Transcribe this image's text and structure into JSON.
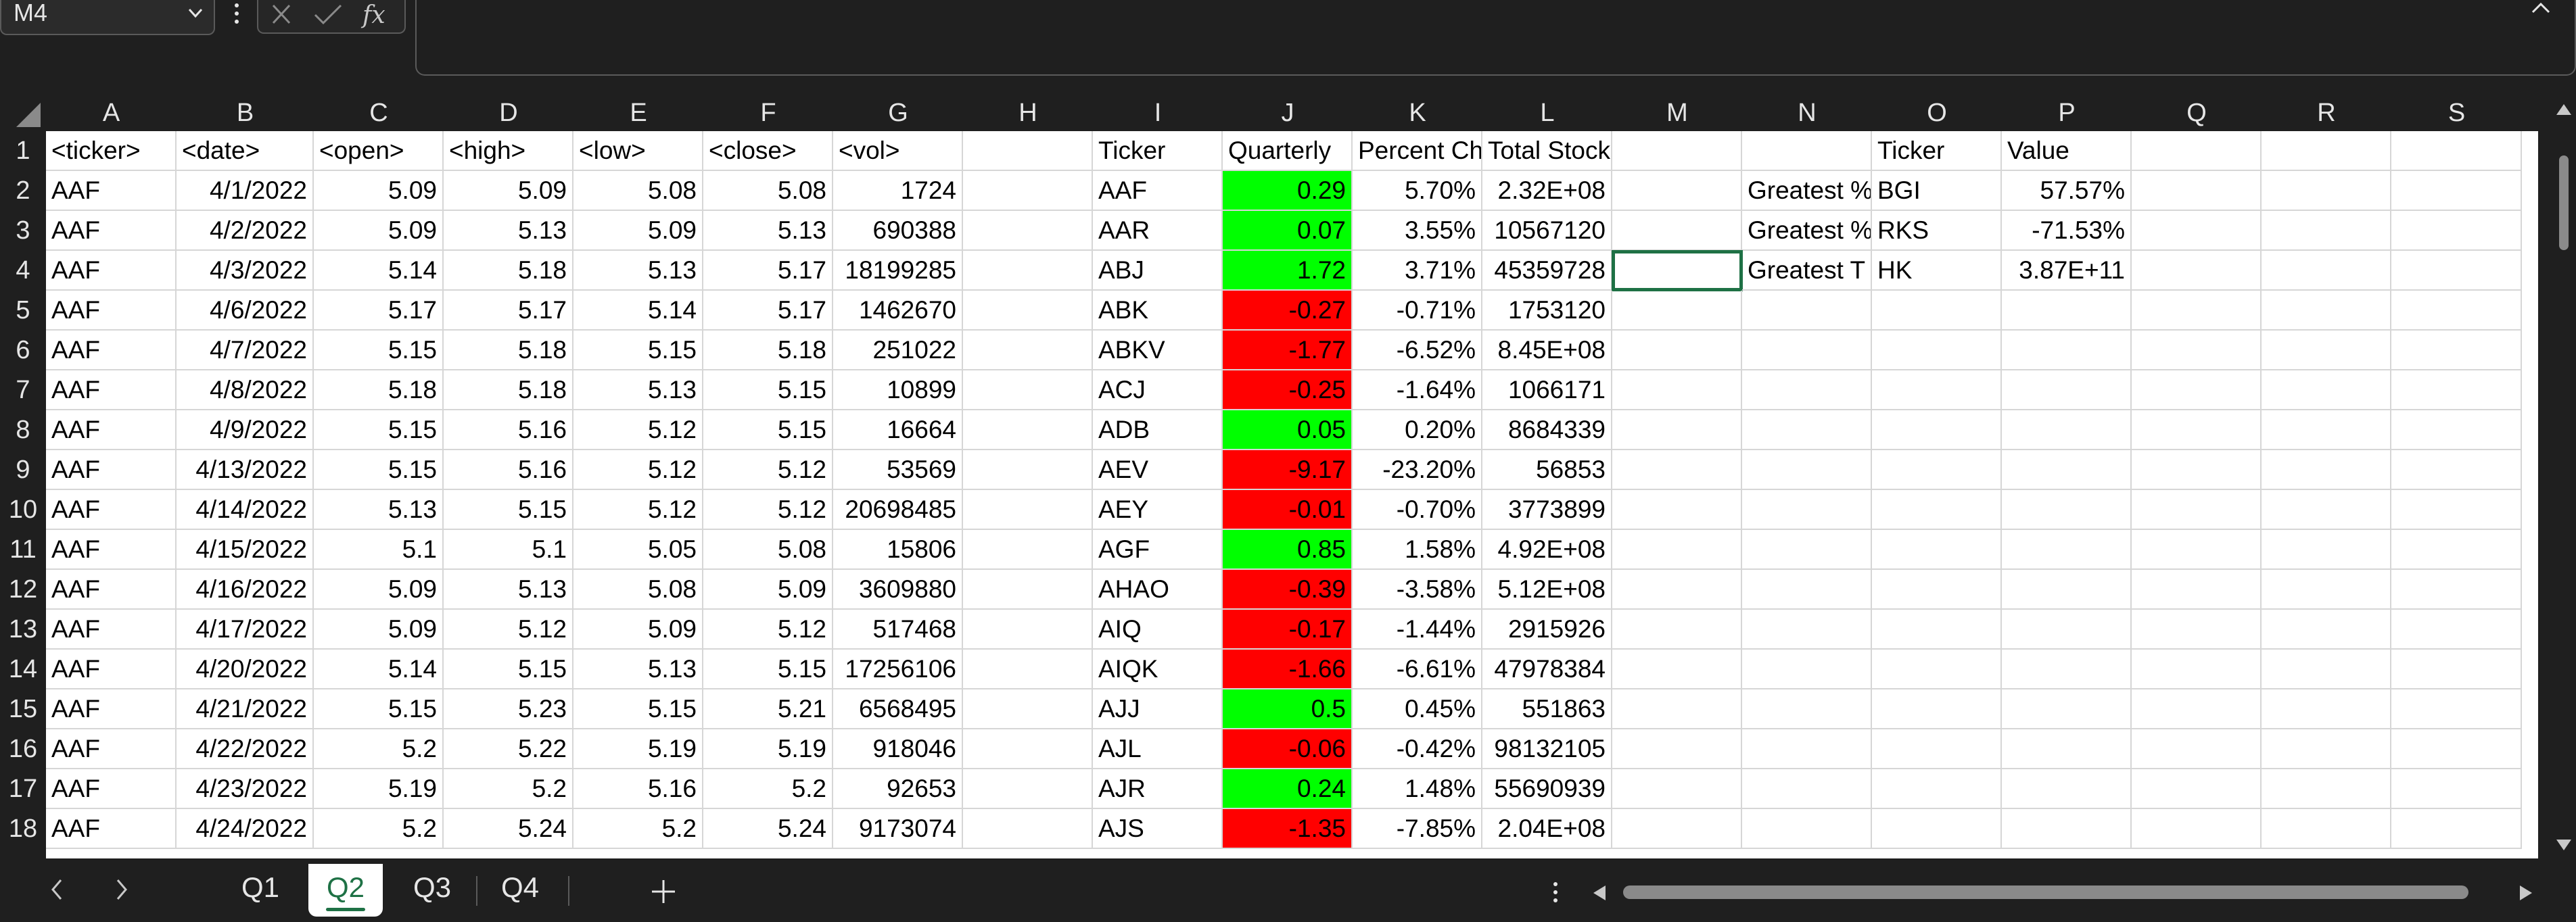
{
  "formula_bar": {
    "name_box": "M4",
    "formula": ""
  },
  "columns": [
    "A",
    "B",
    "C",
    "D",
    "E",
    "F",
    "G",
    "H",
    "I",
    "J",
    "K",
    "L",
    "M",
    "N",
    "O",
    "P",
    "Q",
    "R",
    "S"
  ],
  "rows": [
    {
      "n": "1",
      "c": [
        "<ticker>",
        "<date>",
        "<open>",
        "<high>",
        "<low>",
        "<close>",
        "<vol>",
        "",
        "Ticker",
        "Quarterly",
        "Percent Ch",
        "Total Stock Volume",
        "",
        "",
        "Ticker",
        "Value",
        "",
        "",
        ""
      ],
      "j": ""
    },
    {
      "n": "2",
      "c": [
        "AAF",
        "4/1/2022",
        "5.09",
        "5.09",
        "5.08",
        "5.08",
        "1724",
        "",
        "AAF",
        "0.29",
        "5.70%",
        "2.32E+08",
        "",
        "Greatest %",
        "BGI",
        "57.57%",
        "",
        "",
        ""
      ],
      "j": "green"
    },
    {
      "n": "3",
      "c": [
        "AAF",
        "4/2/2022",
        "5.09",
        "5.13",
        "5.09",
        "5.13",
        "690388",
        "",
        "AAR",
        "0.07",
        "3.55%",
        "10567120",
        "",
        "Greatest %",
        "RKS",
        "-71.53%",
        "",
        "",
        ""
      ],
      "j": "green"
    },
    {
      "n": "4",
      "c": [
        "AAF",
        "4/3/2022",
        "5.14",
        "5.18",
        "5.13",
        "5.17",
        "18199285",
        "",
        "ABJ",
        "1.72",
        "3.71%",
        "45359728",
        "",
        "Greatest T",
        "HK",
        "3.87E+11",
        "",
        "",
        ""
      ],
      "j": "green"
    },
    {
      "n": "5",
      "c": [
        "AAF",
        "4/6/2022",
        "5.17",
        "5.17",
        "5.14",
        "5.17",
        "1462670",
        "",
        "ABK",
        "-0.27",
        "-0.71%",
        "1753120",
        "",
        "",
        "",
        "",
        "",
        "",
        ""
      ],
      "j": "red"
    },
    {
      "n": "6",
      "c": [
        "AAF",
        "4/7/2022",
        "5.15",
        "5.18",
        "5.15",
        "5.18",
        "251022",
        "",
        "ABKV",
        "-1.77",
        "-6.52%",
        "8.45E+08",
        "",
        "",
        "",
        "",
        "",
        "",
        ""
      ],
      "j": "red"
    },
    {
      "n": "7",
      "c": [
        "AAF",
        "4/8/2022",
        "5.18",
        "5.18",
        "5.13",
        "5.15",
        "10899",
        "",
        "ACJ",
        "-0.25",
        "-1.64%",
        "1066171",
        "",
        "",
        "",
        "",
        "",
        "",
        ""
      ],
      "j": "red"
    },
    {
      "n": "8",
      "c": [
        "AAF",
        "4/9/2022",
        "5.15",
        "5.16",
        "5.12",
        "5.15",
        "16664",
        "",
        "ADB",
        "0.05",
        "0.20%",
        "8684339",
        "",
        "",
        "",
        "",
        "",
        "",
        ""
      ],
      "j": "green"
    },
    {
      "n": "9",
      "c": [
        "AAF",
        "4/13/2022",
        "5.15",
        "5.16",
        "5.12",
        "5.12",
        "53569",
        "",
        "AEV",
        "-9.17",
        "-23.20%",
        "56853",
        "",
        "",
        "",
        "",
        "",
        "",
        ""
      ],
      "j": "red"
    },
    {
      "n": "10",
      "c": [
        "AAF",
        "4/14/2022",
        "5.13",
        "5.15",
        "5.12",
        "5.12",
        "20698485",
        "",
        "AEY",
        "-0.01",
        "-0.70%",
        "3773899",
        "",
        "",
        "",
        "",
        "",
        "",
        ""
      ],
      "j": "red"
    },
    {
      "n": "11",
      "c": [
        "AAF",
        "4/15/2022",
        "5.1",
        "5.1",
        "5.05",
        "5.08",
        "15806",
        "",
        "AGF",
        "0.85",
        "1.58%",
        "4.92E+08",
        "",
        "",
        "",
        "",
        "",
        "",
        ""
      ],
      "j": "green"
    },
    {
      "n": "12",
      "c": [
        "AAF",
        "4/16/2022",
        "5.09",
        "5.13",
        "5.08",
        "5.09",
        "3609880",
        "",
        "AHAO",
        "-0.39",
        "-3.58%",
        "5.12E+08",
        "",
        "",
        "",
        "",
        "",
        "",
        ""
      ],
      "j": "red"
    },
    {
      "n": "13",
      "c": [
        "AAF",
        "4/17/2022",
        "5.09",
        "5.12",
        "5.09",
        "5.12",
        "517468",
        "",
        "AIQ",
        "-0.17",
        "-1.44%",
        "2915926",
        "",
        "",
        "",
        "",
        "",
        "",
        ""
      ],
      "j": "red"
    },
    {
      "n": "14",
      "c": [
        "AAF",
        "4/20/2022",
        "5.14",
        "5.15",
        "5.13",
        "5.15",
        "17256106",
        "",
        "AIQK",
        "-1.66",
        "-6.61%",
        "47978384",
        "",
        "",
        "",
        "",
        "",
        "",
        ""
      ],
      "j": "red"
    },
    {
      "n": "15",
      "c": [
        "AAF",
        "4/21/2022",
        "5.15",
        "5.23",
        "5.15",
        "5.21",
        "6568495",
        "",
        "AJJ",
        "0.5",
        "0.45%",
        "551863",
        "",
        "",
        "",
        "",
        "",
        "",
        ""
      ],
      "j": "green"
    },
    {
      "n": "16",
      "c": [
        "AAF",
        "4/22/2022",
        "5.2",
        "5.22",
        "5.19",
        "5.19",
        "918046",
        "",
        "AJL",
        "-0.06",
        "-0.42%",
        "98132105",
        "",
        "",
        "",
        "",
        "",
        "",
        ""
      ],
      "j": "red"
    },
    {
      "n": "17",
      "c": [
        "AAF",
        "4/23/2022",
        "5.19",
        "5.2",
        "5.16",
        "5.2",
        "92653",
        "",
        "AJR",
        "0.24",
        "1.48%",
        "55690939",
        "",
        "",
        "",
        "",
        "",
        "",
        ""
      ],
      "j": "green"
    },
    {
      "n": "18",
      "c": [
        "AAF",
        "4/24/2022",
        "5.2",
        "5.24",
        "5.2",
        "5.24",
        "9173074",
        "",
        "AJS",
        "-1.35",
        "-7.85%",
        "2.04E+08",
        "",
        "",
        "",
        "",
        "",
        "",
        ""
      ],
      "j": "red"
    }
  ],
  "sheet_tabs": [
    "Q1",
    "Q2",
    "Q3",
    "Q4"
  ],
  "active_tab": "Q2",
  "colors": {
    "positive": "#00ff00",
    "negative": "#ff0000",
    "accent": "#1e7145"
  }
}
